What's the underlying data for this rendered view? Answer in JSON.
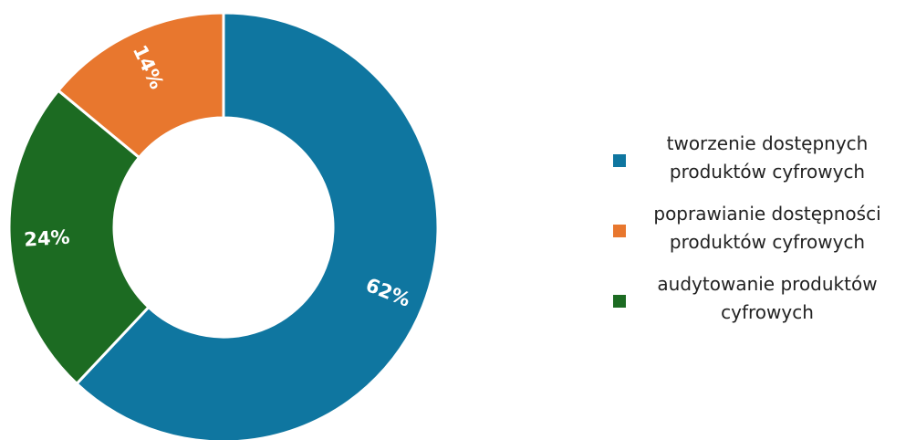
{
  "chart_data": {
    "type": "pie",
    "title": "",
    "slices": [
      {
        "label": "tworzenie dostępnych\nproduktów cyfrowych",
        "value": 62,
        "display": "62%",
        "color": "#0f76a0"
      },
      {
        "label": "audytowanie produktów\ncyfrowych",
        "value": 24,
        "display": "24%",
        "color": "#1c6b22"
      },
      {
        "label": "poprawianie dostępności\nproduktów cyfrowych",
        "value": 14,
        "display": "14%",
        "color": "#e8772e"
      }
    ],
    "legend_position": "right",
    "legend_order": [
      0,
      2,
      1
    ]
  }
}
